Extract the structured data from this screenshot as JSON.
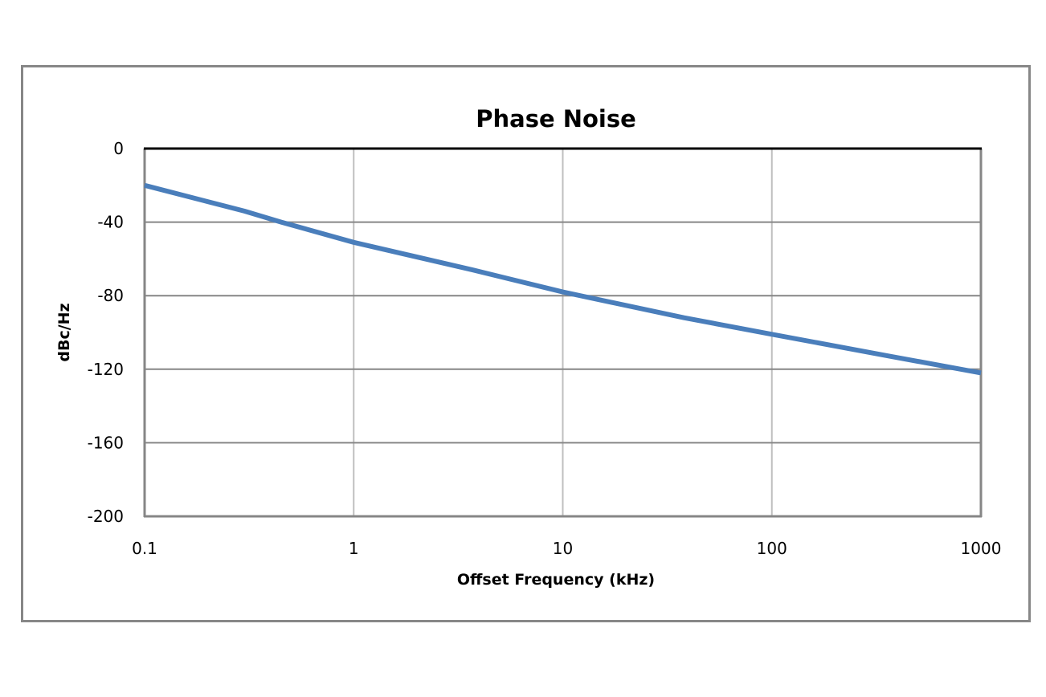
{
  "chart_data": {
    "type": "line",
    "title": "Phase Noise",
    "xlabel": "Offset Frequency (kHz)",
    "ylabel": "dBc/Hz",
    "xscale": "log",
    "xlim": [
      0.1,
      1000
    ],
    "ylim": [
      -200,
      0
    ],
    "xticks": [
      0.1,
      1,
      10,
      100,
      1000
    ],
    "xtick_labels": [
      "0.1",
      "1",
      "10",
      "100",
      "1000"
    ],
    "yticks": [
      0,
      -40,
      -80,
      -120,
      -160,
      -200
    ],
    "ytick_labels": [
      "0",
      "-40",
      "-80",
      "-120",
      "-160",
      "-200"
    ],
    "grid": true,
    "legend": null,
    "series": [
      {
        "name": "Phase Noise",
        "color": "#4a7ebb",
        "x": [
          0.1,
          0.3,
          0.45,
          1,
          3.7,
          10,
          38,
          100,
          370,
          1000
        ],
        "values": [
          -20,
          -34,
          -40,
          -51,
          -66,
          -78,
          -92,
          -101,
          -113,
          -122
        ]
      }
    ]
  },
  "colors": {
    "frame": "#878787",
    "h_grid": "#868686",
    "v_grid": "#bfbfbf",
    "top_axis": "#000000",
    "line": "#4a7ebb"
  }
}
